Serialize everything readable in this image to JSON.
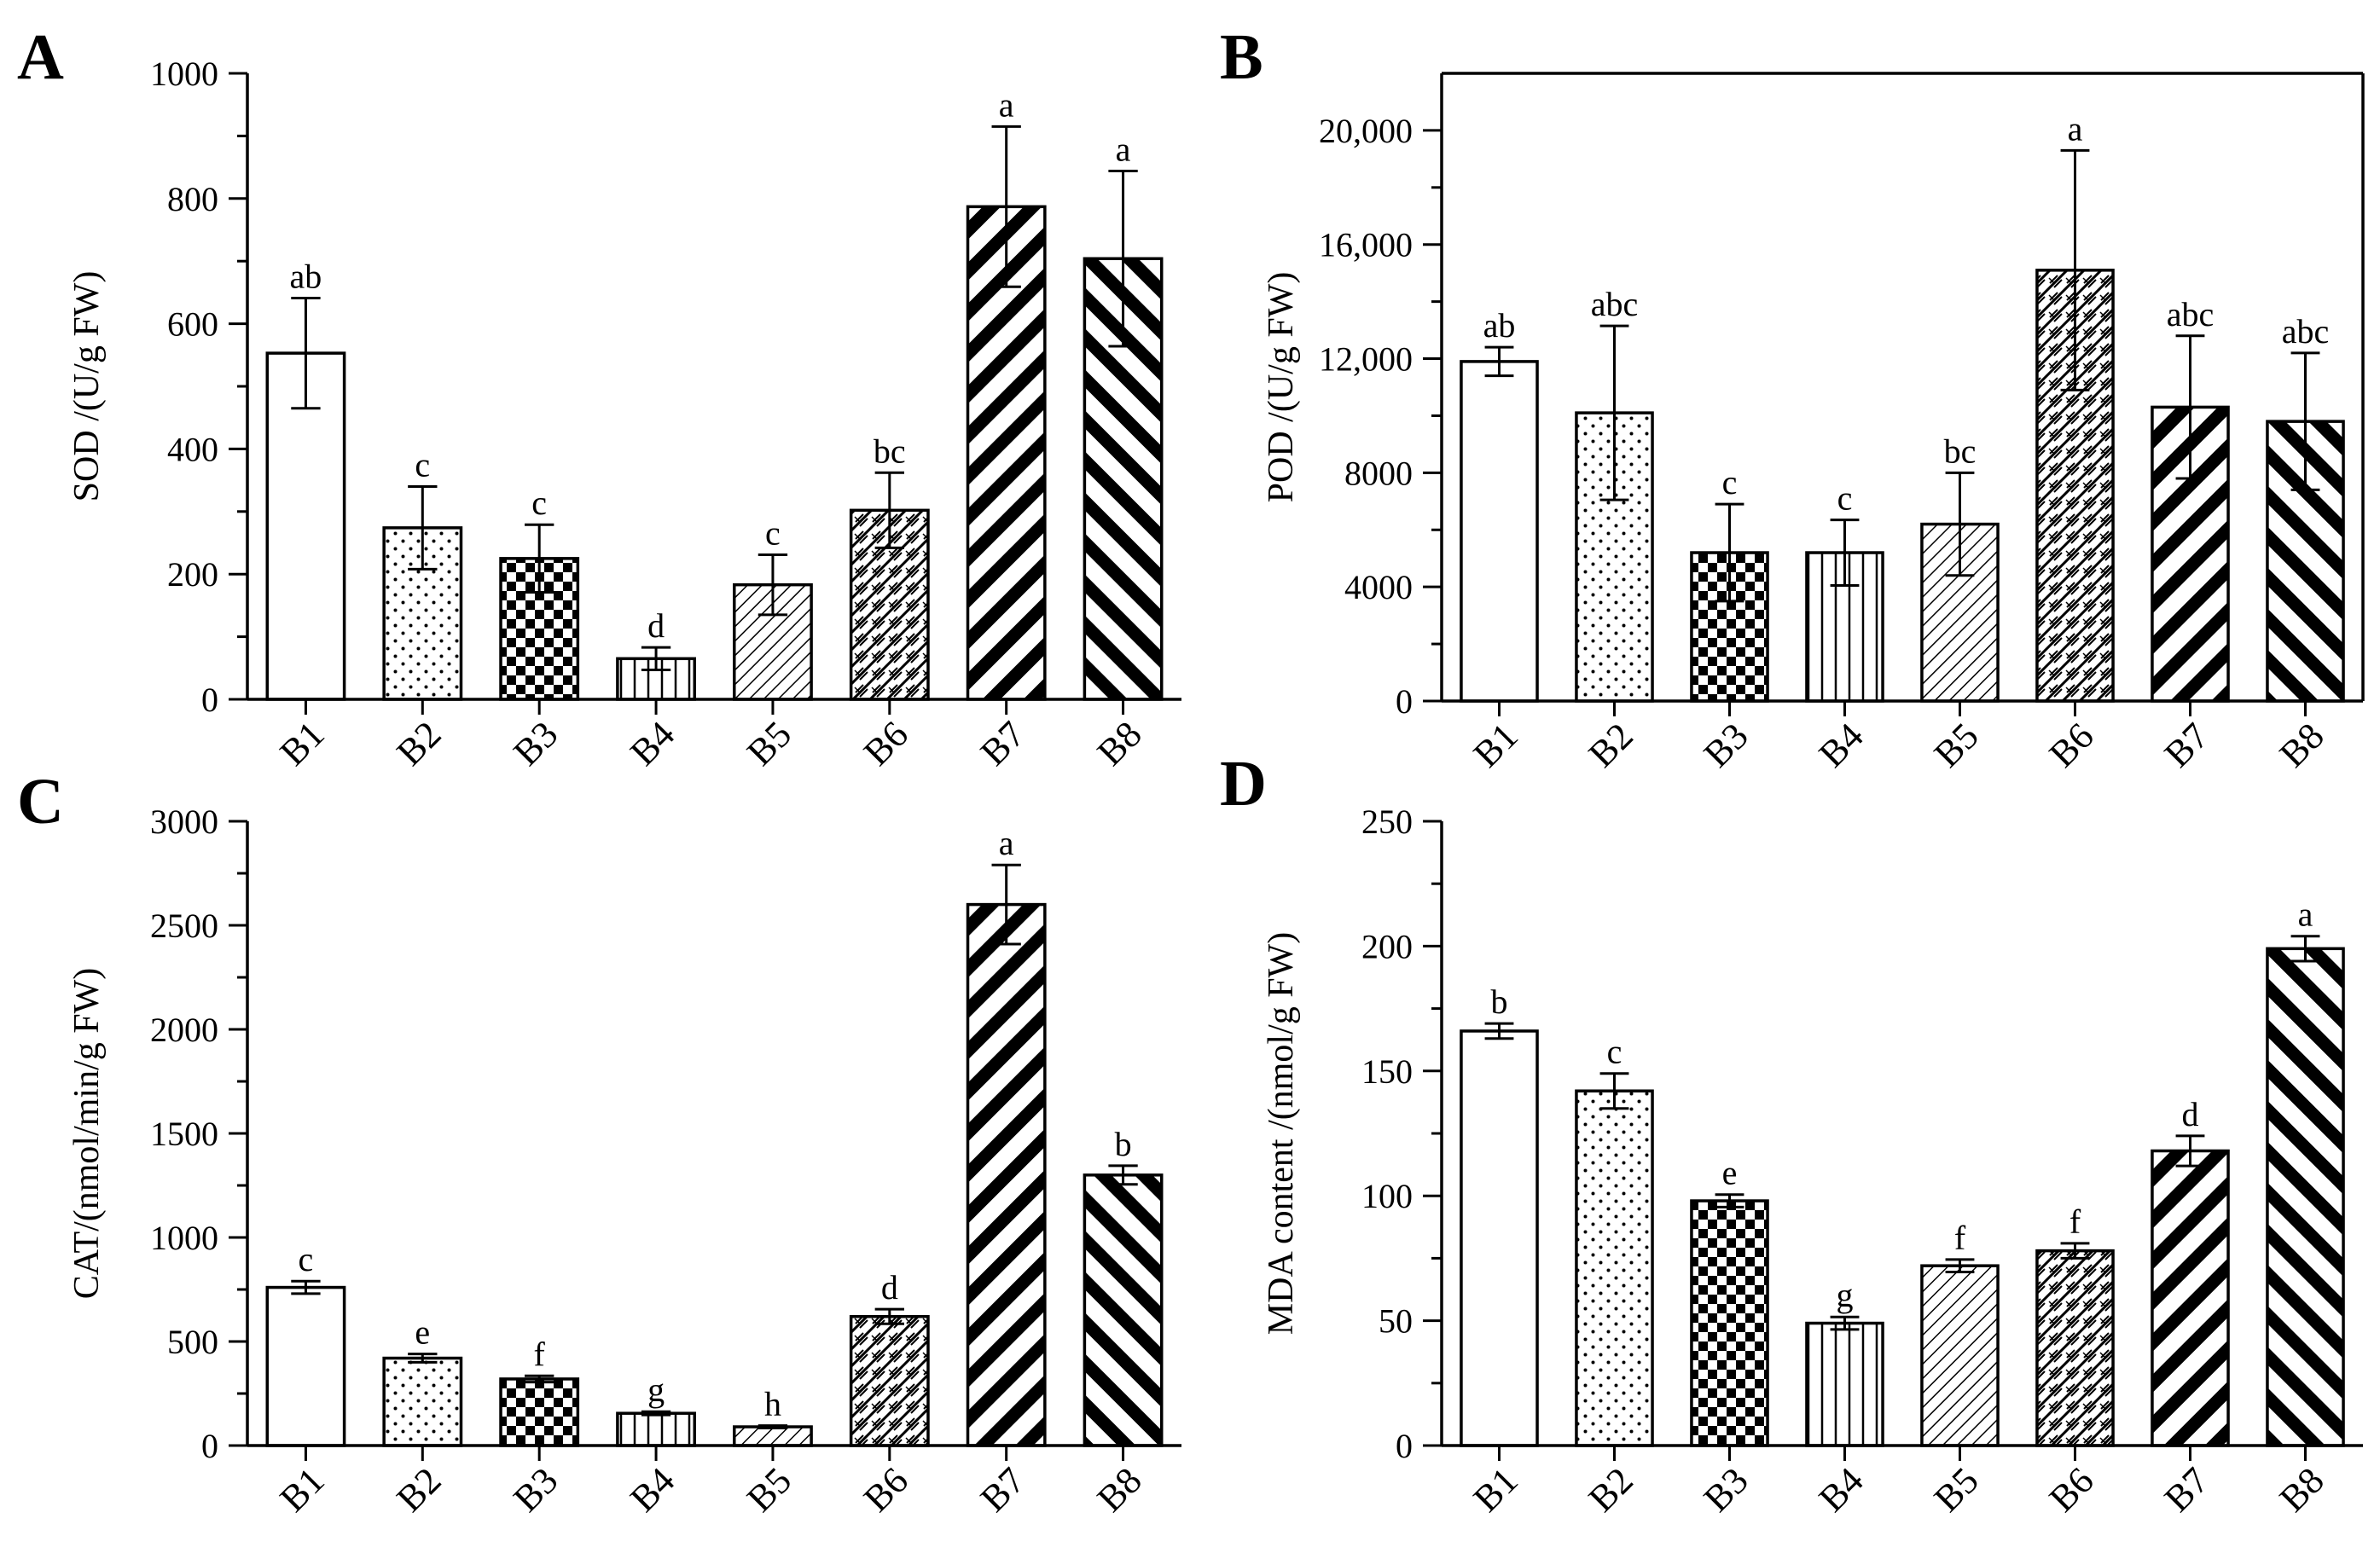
{
  "figure": {
    "panels_order": [
      "A",
      "B",
      "C",
      "D"
    ]
  },
  "chart_data": [
    {
      "panel_label": "A",
      "type": "bar",
      "categories": [
        "B1",
        "B2",
        "B3",
        "B4",
        "B5",
        "B6",
        "B7",
        "B8"
      ],
      "series": [
        {
          "name": "SOD",
          "values": [
            553,
            274,
            225,
            65,
            183,
            302,
            787,
            704
          ]
        }
      ],
      "errors": [
        88,
        66,
        54,
        18,
        48,
        60,
        128,
        140
      ],
      "significance": [
        "ab",
        "c",
        "c",
        "d",
        "c",
        "bc",
        "a",
        "a"
      ],
      "patterns": [
        "open",
        "dots",
        "checker",
        "vertical",
        "diag-fine",
        "diag-cross",
        "diag-bold-up",
        "diag-bold-down"
      ],
      "title": "",
      "xlabel": "",
      "ylabel": "SOD /(U/g FW)",
      "ylim": [
        0,
        1000
      ],
      "yticks": [
        0,
        200,
        400,
        600,
        800,
        1000
      ],
      "ytick_labels": [
        "0",
        "200",
        "400",
        "600",
        "800",
        "1000"
      ],
      "grid": false,
      "frame": "open"
    },
    {
      "panel_label": "B",
      "type": "bar",
      "categories": [
        "B1",
        "B2",
        "B3",
        "B4",
        "B5",
        "B6",
        "B7",
        "B8"
      ],
      "series": [
        {
          "name": "POD",
          "values": [
            11900,
            10100,
            5200,
            5200,
            6200,
            15100,
            10300,
            9800
          ]
        }
      ],
      "errors": [
        500,
        3050,
        1700,
        1150,
        1800,
        4200,
        2500,
        2400
      ],
      "significance": [
        "ab",
        "abc",
        "c",
        "c",
        "bc",
        "a",
        "abc",
        "abc"
      ],
      "patterns": [
        "open",
        "dots",
        "checker",
        "vertical",
        "diag-fine",
        "diag-cross",
        "diag-bold-up",
        "diag-bold-down"
      ],
      "title": "",
      "xlabel": "",
      "ylabel": "POD /(U/g FW)",
      "ylim": [
        0,
        22000
      ],
      "yticks": [
        0,
        4000,
        8000,
        12000,
        16000,
        20000
      ],
      "ytick_labels": [
        "0",
        "4000",
        "8000",
        "12,000",
        "16,000",
        "20,000"
      ],
      "grid": false,
      "frame": "box"
    },
    {
      "panel_label": "C",
      "type": "bar",
      "categories": [
        "B1",
        "B2",
        "B3",
        "B4",
        "B5",
        "B6",
        "B7",
        "B8"
      ],
      "series": [
        {
          "name": "CAT",
          "values": [
            760,
            420,
            320,
            155,
            90,
            620,
            2600,
            1300
          ]
        }
      ],
      "errors": [
        30,
        20,
        15,
        8,
        6,
        35,
        190,
        45
      ],
      "significance": [
        "c",
        "e",
        "f",
        "g",
        "h",
        "d",
        "a",
        "b"
      ],
      "patterns": [
        "open",
        "dots",
        "checker",
        "vertical",
        "diag-fine",
        "diag-cross",
        "diag-bold-up",
        "diag-bold-down"
      ],
      "title": "",
      "xlabel": "",
      "ylabel": "CAT/(nmol/min/g FW)",
      "ylim": [
        0,
        3000
      ],
      "yticks": [
        0,
        500,
        1000,
        1500,
        2000,
        2500,
        3000
      ],
      "ytick_labels": [
        "0",
        "500",
        "1000",
        "1500",
        "2000",
        "2500",
        "3000"
      ],
      "grid": false,
      "frame": "open"
    },
    {
      "panel_label": "D",
      "type": "bar",
      "categories": [
        "B1",
        "B2",
        "B3",
        "B4",
        "B5",
        "B6",
        "B7",
        "B8"
      ],
      "series": [
        {
          "name": "MDA",
          "values": [
            166,
            142,
            98,
            49,
            72,
            78,
            118,
            199
          ]
        }
      ],
      "errors": [
        3,
        7,
        2.5,
        2.5,
        2.5,
        3,
        6,
        5
      ],
      "significance": [
        "b",
        "c",
        "e",
        "g",
        "f",
        "f",
        "d",
        "a"
      ],
      "patterns": [
        "open",
        "dots",
        "checker",
        "vertical",
        "diag-fine",
        "diag-cross",
        "diag-bold-up",
        "diag-bold-down"
      ],
      "title": "",
      "xlabel": "",
      "ylabel": "MDA content /(nmol/g FW)",
      "ylim": [
        0,
        250
      ],
      "yticks": [
        0,
        50,
        100,
        150,
        200,
        250
      ],
      "ytick_labels": [
        "0",
        "50",
        "100",
        "150",
        "200",
        "250"
      ],
      "grid": false,
      "frame": "open"
    }
  ]
}
